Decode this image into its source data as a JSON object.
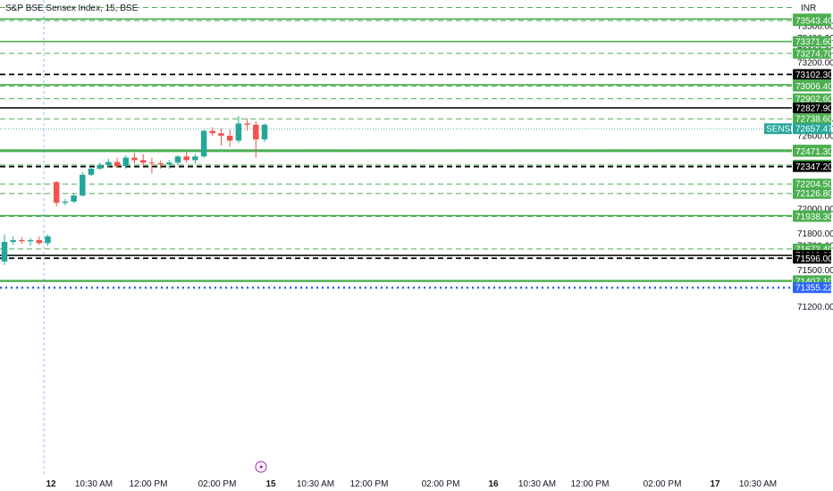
{
  "header": {
    "title": "S&P BSE Sensex Index, 15, BSE",
    "currency": "INR"
  },
  "colors": {
    "support_line": "#4caf50",
    "support_badge": "#4caf50",
    "key_level": "#000000",
    "up_candle": "#26a69a",
    "down_candle": "#ef5350",
    "last_price_line": "#26a69a",
    "session_marker": "#2962ff",
    "projection": "#2962ff"
  },
  "chart_data": {
    "type": "candlestick",
    "title": "S&P BSE Sensex Index, 15, BSE",
    "ylim": [
      71100,
      73650
    ],
    "y_ticks": [
      73500,
      73400,
      73300,
      73200,
      72700,
      72600,
      72000,
      71800,
      71700,
      71500,
      71200
    ],
    "x_ticks": [
      "12",
      "10:30 AM",
      "12:00 PM",
      "02:00 PM",
      "15",
      "10:30 AM",
      "12:00 PM",
      "02:00 PM",
      "16",
      "10:30 AM",
      "12:00 PM",
      "02:00 PM",
      "17",
      "10:30 AM"
    ],
    "grid": false,
    "candles": [
      {
        "o": 71570,
        "h": 71790,
        "l": 71540,
        "c": 71730
      },
      {
        "o": 71730,
        "h": 71775,
        "l": 71705,
        "c": 71745
      },
      {
        "o": 71745,
        "h": 71770,
        "l": 71715,
        "c": 71735
      },
      {
        "o": 71735,
        "h": 71760,
        "l": 71700,
        "c": 71745
      },
      {
        "o": 71745,
        "h": 71775,
        "l": 71705,
        "c": 71720
      },
      {
        "o": 71720,
        "h": 71790,
        "l": 71700,
        "c": 71775
      },
      {
        "o": 72220,
        "h": 72230,
        "l": 72020,
        "c": 72050
      },
      {
        "o": 72050,
        "h": 72080,
        "l": 72030,
        "c": 72060
      },
      {
        "o": 72060,
        "h": 72125,
        "l": 72050,
        "c": 72110
      },
      {
        "o": 72110,
        "h": 72300,
        "l": 72100,
        "c": 72280
      },
      {
        "o": 72280,
        "h": 72340,
        "l": 72270,
        "c": 72330
      },
      {
        "o": 72330,
        "h": 72380,
        "l": 72320,
        "c": 72360
      },
      {
        "o": 72360,
        "h": 72410,
        "l": 72340,
        "c": 72385
      },
      {
        "o": 72385,
        "h": 72420,
        "l": 72340,
        "c": 72350
      },
      {
        "o": 72350,
        "h": 72440,
        "l": 72330,
        "c": 72420
      },
      {
        "o": 72420,
        "h": 72460,
        "l": 72370,
        "c": 72400
      },
      {
        "o": 72400,
        "h": 72450,
        "l": 72360,
        "c": 72380
      },
      {
        "o": 72380,
        "h": 72420,
        "l": 72290,
        "c": 72375
      },
      {
        "o": 72375,
        "h": 72395,
        "l": 72330,
        "c": 72365
      },
      {
        "o": 72365,
        "h": 72400,
        "l": 72330,
        "c": 72380
      },
      {
        "o": 72380,
        "h": 72440,
        "l": 72360,
        "c": 72430
      },
      {
        "o": 72430,
        "h": 72470,
        "l": 72380,
        "c": 72400
      },
      {
        "o": 72400,
        "h": 72450,
        "l": 72370,
        "c": 72430
      },
      {
        "o": 72430,
        "h": 72650,
        "l": 72420,
        "c": 72640
      },
      {
        "o": 72640,
        "h": 72670,
        "l": 72600,
        "c": 72620
      },
      {
        "o": 72620,
        "h": 72660,
        "l": 72520,
        "c": 72600
      },
      {
        "o": 72600,
        "h": 72650,
        "l": 72510,
        "c": 72560
      },
      {
        "o": 72560,
        "h": 72760,
        "l": 72540,
        "c": 72700
      },
      {
        "o": 72700,
        "h": 72740,
        "l": 72640,
        "c": 72690
      },
      {
        "o": 72690,
        "h": 72720,
        "l": 72420,
        "c": 72570
      },
      {
        "o": 72570,
        "h": 72700,
        "l": 72550,
        "c": 72690
      }
    ],
    "levels": [
      {
        "value": 73556.3,
        "label": "73556.30",
        "kind": "support",
        "style": "solid"
      },
      {
        "value": 73543.4,
        "label": "73543.40",
        "kind": "support",
        "style": "dashed"
      },
      {
        "value": 73371.6,
        "label": "73371.60",
        "kind": "support",
        "style": "solid"
      },
      {
        "value": 73274.7,
        "label": "73274.70",
        "kind": "support",
        "style": "dashed"
      },
      {
        "value": 73102.3,
        "label": "73102.30",
        "kind": "key",
        "style": "dashed"
      },
      {
        "value": 73017.4,
        "label": "73017.40",
        "kind": "support",
        "style": "solid"
      },
      {
        "value": 73006.4,
        "label": "73006.40",
        "kind": "support",
        "style": "dashed"
      },
      {
        "value": 72902.6,
        "label": "72902.60",
        "kind": "support",
        "style": "dashed"
      },
      {
        "value": 72827.9,
        "label": "72827.90",
        "kind": "key",
        "style": "solid"
      },
      {
        "value": 72738.6,
        "label": "72738.60",
        "kind": "support",
        "style": "dashed"
      },
      {
        "value": 72482.5,
        "label": "72482.50",
        "kind": "support",
        "style": "solid"
      },
      {
        "value": 72480.5,
        "label": "72480.50",
        "kind": "support",
        "style": "dashed"
      },
      {
        "value": 72471.3,
        "label": "72471.30",
        "kind": "support",
        "style": "solid"
      },
      {
        "value": 72359.9,
        "label": "72359.90",
        "kind": "support",
        "style": "dashed"
      },
      {
        "value": 72347.2,
        "label": "72347.20",
        "kind": "key",
        "style": "dashed"
      },
      {
        "value": 72204.5,
        "label": "72204.50",
        "kind": "support",
        "style": "dashed"
      },
      {
        "value": 72126.8,
        "label": "72126.80",
        "kind": "support",
        "style": "dashed"
      },
      {
        "value": 71945.6,
        "label": "71945.60",
        "kind": "support",
        "style": "solid"
      },
      {
        "value": 71938.3,
        "label": "71938.30",
        "kind": "support",
        "style": "dashed"
      },
      {
        "value": 71672.4,
        "label": "71672.40",
        "kind": "support",
        "style": "dashed"
      },
      {
        "value": 71619.2,
        "label": "71619.20",
        "kind": "key",
        "style": "solid"
      },
      {
        "value": 71596.0,
        "label": "71596.00",
        "kind": "key",
        "style": "dashed"
      },
      {
        "value": 71412.6,
        "label": "71412.60",
        "kind": "support",
        "style": "solid"
      },
      {
        "value": 71411.3,
        "label": "71411.30",
        "kind": "support",
        "style": "solid"
      },
      {
        "value": 71407.1,
        "label": "71407.10",
        "kind": "support",
        "style": "solid"
      },
      {
        "value": 71355.22,
        "label": "71355.22",
        "kind": "projection",
        "style": "dotted"
      }
    ],
    "top_dashed_level": 73650,
    "last_price": {
      "value": 72657.47,
      "label": "72657.47",
      "symbol": "SENSEX"
    }
  }
}
